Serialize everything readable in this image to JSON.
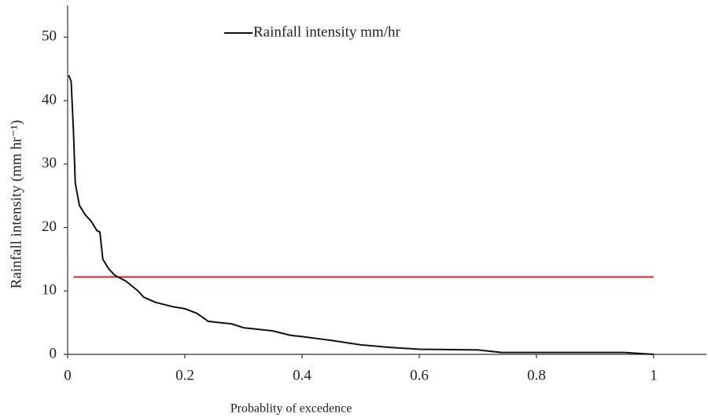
{
  "chart_data": {
    "type": "line",
    "x_label": "Probablity of excedence",
    "y_label": "Rainfall  intensity (mm hr⁻¹)",
    "x": [
      0.002,
      0.006,
      0.01,
      0.013,
      0.02,
      0.03,
      0.04,
      0.05,
      0.055,
      0.06,
      0.07,
      0.08,
      0.1,
      0.12,
      0.13,
      0.15,
      0.18,
      0.2,
      0.22,
      0.24,
      0.28,
      0.3,
      0.35,
      0.38,
      0.4,
      0.45,
      0.5,
      0.55,
      0.6,
      0.7,
      0.74,
      0.8,
      0.9,
      0.95,
      1.0
    ],
    "series": [
      {
        "name": "Rainfall intensity mm/hr",
        "color": "#111111",
        "values": [
          44,
          43,
          35,
          27,
          23.5,
          22,
          21,
          19.5,
          19.3,
          15,
          13.5,
          12.5,
          11.5,
          10,
          9,
          8.2,
          7.5,
          7.2,
          6.5,
          5.2,
          4.8,
          4.2,
          3.7,
          3.0,
          2.8,
          2.2,
          1.5,
          1.1,
          0.8,
          0.7,
          0.3,
          0.3,
          0.3,
          0.3,
          0.0
        ]
      }
    ],
    "hline": {
      "value": 12.2,
      "xmin": 0.01,
      "xmax": 1.0,
      "color": "#e02020"
    },
    "xlim": [
      0,
      1.09
    ],
    "xticks": [
      0,
      0.2,
      0.4,
      0.6,
      0.8,
      1
    ],
    "ylim": [
      0,
      55
    ],
    "yticks": [
      0,
      10,
      20,
      30,
      40,
      50
    ],
    "grid": false,
    "legend": "top-center"
  }
}
